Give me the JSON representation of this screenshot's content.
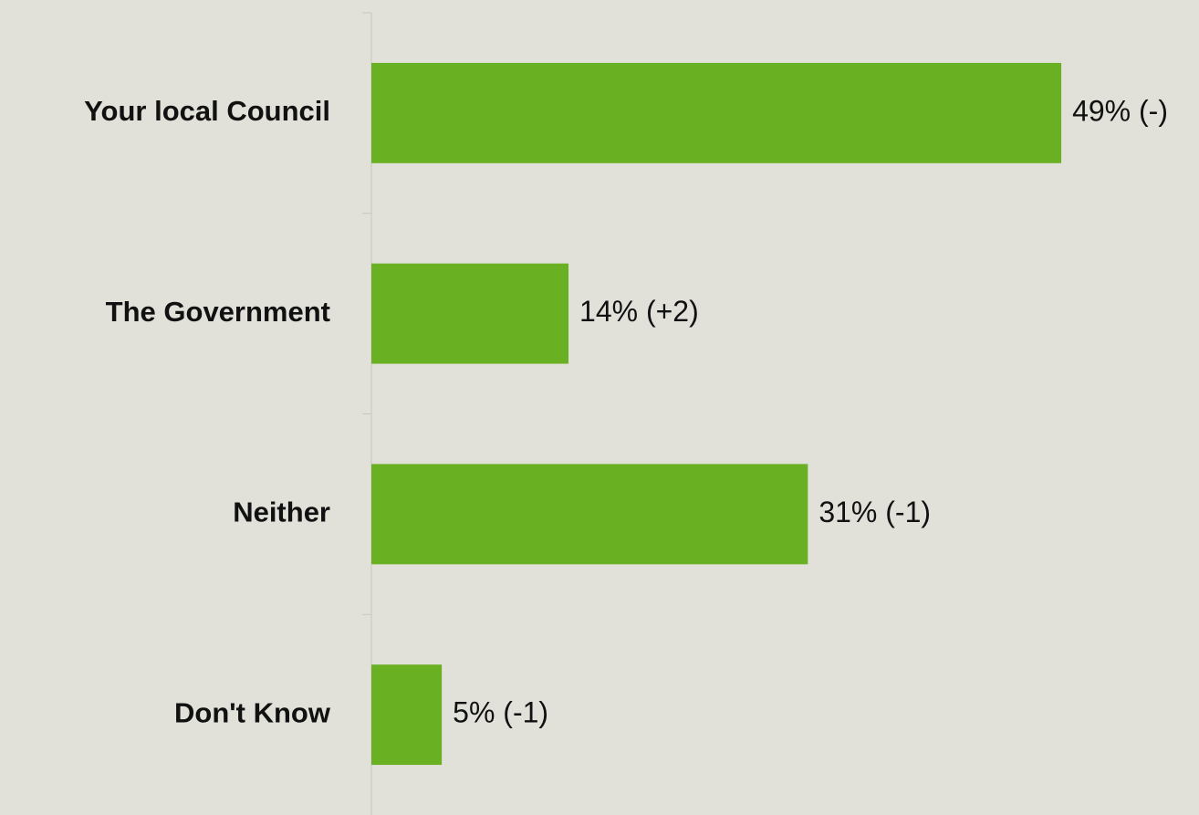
{
  "chart_data": {
    "type": "bar",
    "orientation": "horizontal",
    "categories": [
      "Your local Council",
      "The Government",
      "Neither",
      "Don't Know"
    ],
    "values": [
      49,
      14,
      31,
      5
    ],
    "value_labels": [
      "49% (-)",
      "14% (+2)",
      "31% (-1)",
      "5% (-1)"
    ],
    "color": "#6ab023"
  }
}
